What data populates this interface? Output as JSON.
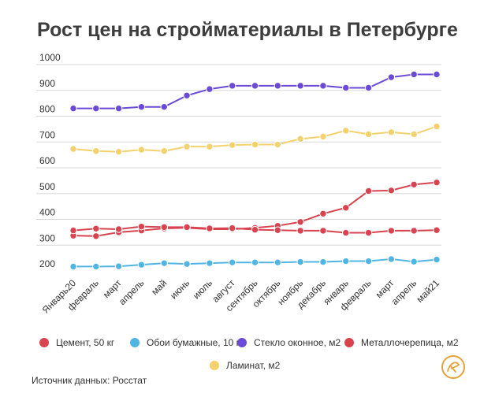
{
  "source": "Источник данных: Росстат",
  "chart_data": {
    "type": "line",
    "title": "Рост цен на стройматериалы в Петербурге",
    "xlabel": "",
    "ylabel": "",
    "ylim": [
      200,
      1000
    ],
    "yticks": [
      200,
      300,
      400,
      500,
      600,
      700,
      800,
      900,
      1000
    ],
    "grid": true,
    "legend_position": "bottom",
    "categories": [
      "Январь20",
      "февраль",
      "март",
      "апрель",
      "май",
      "июнь",
      "июль",
      "август",
      "сентябрь",
      "октябрь",
      "ноябрь",
      "декабрь",
      "январь",
      "февраль",
      "март",
      "апрель",
      "май21"
    ],
    "series": [
      {
        "name": "Цемент, 50 кг",
        "color": "#d9434f",
        "values": [
          337,
          335,
          350,
          357,
          365,
          367,
          362,
          362,
          367,
          375,
          390,
          422,
          445,
          510,
          512,
          535,
          543
        ]
      },
      {
        "name": "Обои бумажные, 10 м",
        "color": "#51b5e3",
        "values": [
          217,
          217,
          218,
          224,
          230,
          227,
          230,
          233,
          233,
          233,
          235,
          235,
          238,
          238,
          246,
          236,
          244
        ]
      },
      {
        "name": "Стекло оконное, м2",
        "color": "#6a4ad6",
        "values": [
          830,
          830,
          830,
          836,
          836,
          880,
          905,
          918,
          918,
          918,
          918,
          918,
          910,
          910,
          951,
          962,
          962
        ]
      },
      {
        "name": "Металлочерепица, м2",
        "color": "#d9434f",
        "values": [
          357,
          364,
          362,
          372,
          370,
          370,
          365,
          366,
          360,
          358,
          356,
          356,
          348,
          348,
          356,
          356,
          358
        ]
      },
      {
        "name": "Ламинат, м2",
        "color": "#f3d16c",
        "values": [
          673,
          665,
          662,
          670,
          665,
          682,
          682,
          688,
          690,
          690,
          712,
          721,
          744,
          730,
          738,
          730,
          760
        ]
      }
    ]
  }
}
